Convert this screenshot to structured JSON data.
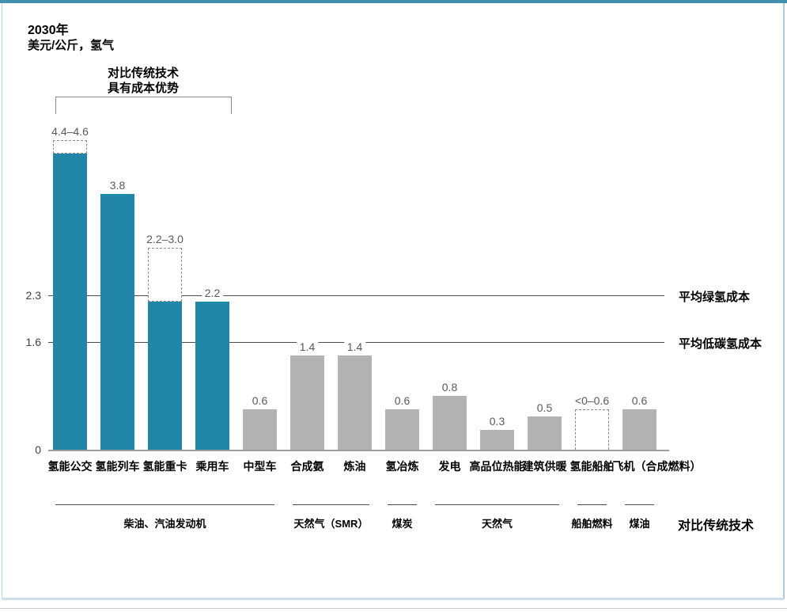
{
  "header": {
    "year": "2030年",
    "unit": "美元/公斤，氢气"
  },
  "annotation": {
    "line1": "对比传统技术",
    "line2": "具有成本优势"
  },
  "reference_lines": [
    {
      "value": 2.3,
      "tick": "2.3",
      "label": "平均绿氢成本"
    },
    {
      "value": 1.6,
      "tick": "1.6",
      "label": "平均低碳氢成本"
    }
  ],
  "y_axis": {
    "zero_tick": "0"
  },
  "chart_data": {
    "type": "bar",
    "title": "2030年",
    "ylabel": "美元/公斤，氢气",
    "ylim": [
      0,
      4.8
    ],
    "grid": "off",
    "categories": [
      "氢能公交",
      "氢能列车",
      "氢能重卡",
      "乘用车",
      "中型车",
      "合成氨",
      "炼油",
      "氢冶炼",
      "发电",
      "高品位热能",
      "建筑供暖",
      "氢能船舶",
      "飞机（合成燃料）"
    ],
    "bars": [
      {
        "category": "氢能公交",
        "value_label": "4.4–4.6",
        "solid": 4.4,
        "dashed_to": 4.6,
        "style": "teal"
      },
      {
        "category": "氢能列车",
        "value_label": "3.8",
        "solid": 3.8,
        "style": "teal"
      },
      {
        "category": "氢能重卡",
        "value_label": "2.2–3.0",
        "solid": 2.2,
        "dashed_to": 3.0,
        "style": "teal"
      },
      {
        "category": "乘用车",
        "value_label": "2.2",
        "solid": 2.2,
        "style": "teal"
      },
      {
        "category": "中型车",
        "value_label": "0.6",
        "solid": 0.6,
        "style": "gray"
      },
      {
        "category": "合成氨",
        "value_label": "1.4",
        "solid": 1.4,
        "style": "gray"
      },
      {
        "category": "炼油",
        "value_label": "1.4",
        "solid": 1.4,
        "style": "gray"
      },
      {
        "category": "氢冶炼",
        "value_label": "0.6",
        "solid": 0.6,
        "style": "gray"
      },
      {
        "category": "发电",
        "value_label": "0.8",
        "solid": 0.8,
        "style": "gray"
      },
      {
        "category": "高品位热能",
        "value_label": "0.3",
        "solid": 0.3,
        "style": "gray"
      },
      {
        "category": "建筑供暖",
        "value_label": "0.5",
        "solid": 0.5,
        "style": "gray"
      },
      {
        "category": "氢能船舶",
        "value_label": "<0–0.6",
        "solid": 0,
        "dashed_to": 0.6,
        "style": "dashed"
      },
      {
        "category": "飞机（合成燃料）",
        "value_label": "0.6",
        "solid": 0.6,
        "style": "gray"
      }
    ],
    "comparison_groups": [
      {
        "label": "柴油、汽油发动机",
        "from_bar": 0,
        "to_bar": 4
      },
      {
        "label": "天然气（SMR）",
        "from_bar": 5,
        "to_bar": 6
      },
      {
        "label": "煤炭",
        "from_bar": 7,
        "to_bar": 7
      },
      {
        "label": "天然气",
        "from_bar": 8,
        "to_bar": 10
      },
      {
        "label": "船舶燃料",
        "from_bar": 11,
        "to_bar": 11
      },
      {
        "label": "煤油",
        "from_bar": 12,
        "to_bar": 12
      }
    ],
    "comparison_axis_label": "对比传统技术"
  },
  "colors": {
    "teal_bar": "#2186A8",
    "gray_bar": "#B3B3B3",
    "value_label_text": "#595959",
    "reference_line": "#4D4D4D",
    "baseline": "#9E9E9E",
    "dashed_outline": "#8C8C8C",
    "frame_top": "#4190AE",
    "frame_side": "#B9D5E3"
  }
}
